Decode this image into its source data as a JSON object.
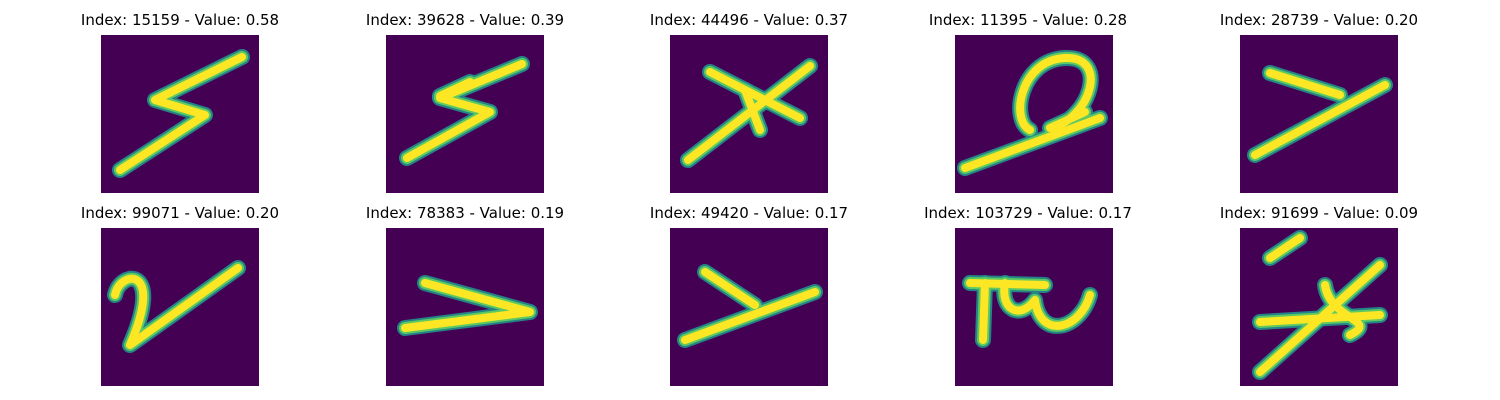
{
  "figure": {
    "title_prefix": "Index: ",
    "title_separator": " - Value: ",
    "colormap": "viridis",
    "colors": {
      "background": "#440154",
      "stroke_core": "#fde725",
      "stroke_mid": "#5ec962",
      "stroke_edge": "#21918c"
    },
    "rows": [
      [
        {
          "index": "15159",
          "value": "0.58",
          "glyph": "lightning-z"
        },
        {
          "index": "39628",
          "value": "0.39",
          "glyph": "lightning-z-crossed"
        },
        {
          "index": "44496",
          "value": "0.37",
          "glyph": "x-cross"
        },
        {
          "index": "11395",
          "value": "0.28",
          "glyph": "loop-q"
        },
        {
          "index": "28739",
          "value": "0.20",
          "glyph": "y-stroke"
        }
      ],
      [
        {
          "index": "99071",
          "value": "0.20",
          "glyph": "n-squiggle"
        },
        {
          "index": "78383",
          "value": "0.19",
          "glyph": "wedge"
        },
        {
          "index": "49420",
          "value": "0.17",
          "glyph": "y-stroke-2"
        },
        {
          "index": "103729",
          "value": "0.17",
          "glyph": "pi-r"
        },
        {
          "index": "91699",
          "value": "0.09",
          "glyph": "five-stroke"
        }
      ]
    ]
  }
}
